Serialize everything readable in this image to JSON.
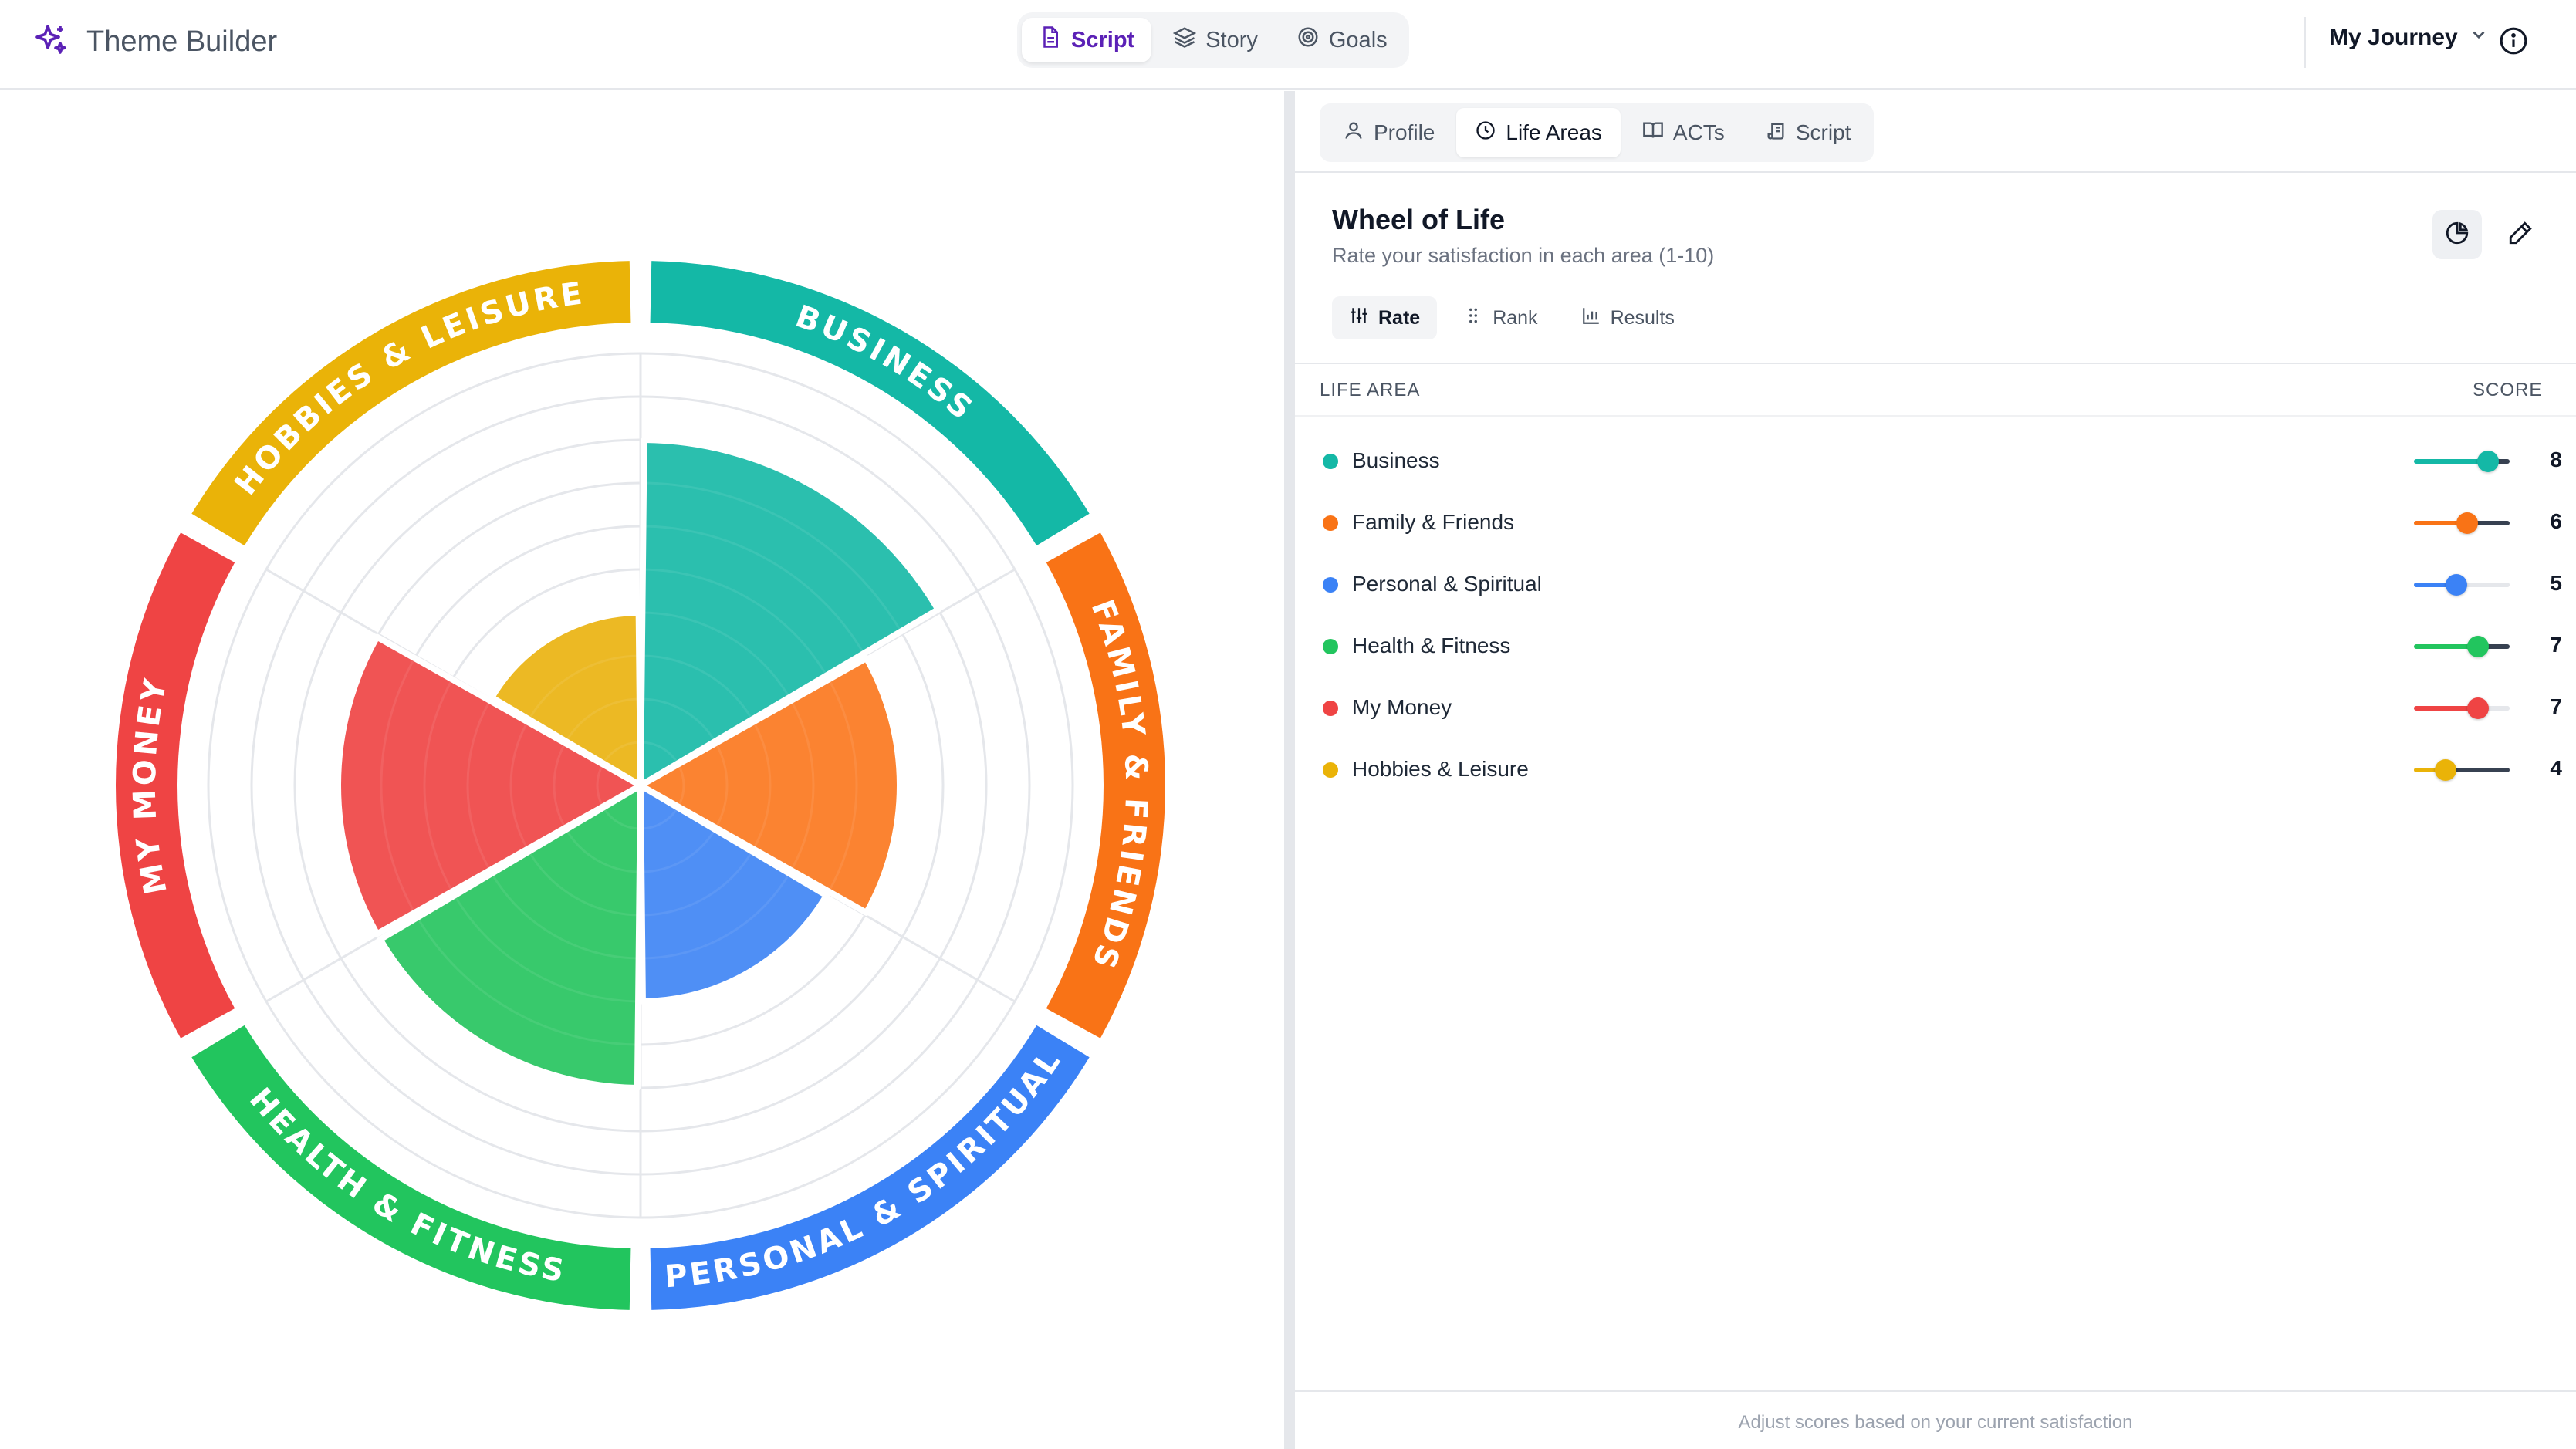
{
  "app": {
    "title": "Theme Builder"
  },
  "header": {
    "nav": [
      {
        "label": "Script",
        "icon": "document-icon",
        "active": true
      },
      {
        "label": "Story",
        "icon": "layers-icon",
        "active": false
      },
      {
        "label": "Goals",
        "icon": "target-icon",
        "active": false
      }
    ],
    "journey_label": "My Journey"
  },
  "panel": {
    "tabs": [
      {
        "label": "Profile",
        "icon": "user-icon"
      },
      {
        "label": "Life Areas",
        "icon": "circle-icon",
        "active": true
      },
      {
        "label": "ACTs",
        "icon": "book-icon"
      },
      {
        "label": "Script",
        "icon": "scroll-icon"
      }
    ],
    "title": "Wheel of Life",
    "subtitle": "Rate your satisfaction in each area (1-10)",
    "modes": [
      {
        "label": "Rate",
        "icon": "sliders-icon",
        "active": true
      },
      {
        "label": "Rank",
        "icon": "grip-icon"
      },
      {
        "label": "Results",
        "icon": "bar-chart-icon"
      }
    ],
    "col_area": "LIFE AREA",
    "col_score": "SCORE",
    "footer": "Adjust scores based on your current satisfaction"
  },
  "areas": [
    {
      "name": "Business",
      "score": 8,
      "color": "#14b8a6",
      "fill": "#2bbfae",
      "ring_label": "BUSINESS"
    },
    {
      "name": "Family & Friends",
      "score": 6,
      "color": "#f97316",
      "fill": "#fb8331",
      "ring_label": "FAMILY & FRIENDS"
    },
    {
      "name": "Personal & Spiritual",
      "score": 5,
      "color": "#3b82f6",
      "fill": "#4f8ff5",
      "ring_label": "PERSONAL & SPIRITUAL"
    },
    {
      "name": "Health & Fitness",
      "score": 7,
      "color": "#22c55e",
      "fill": "#38c96c",
      "ring_label": "HEALTH & FITNESS"
    },
    {
      "name": "My Money",
      "score": 7,
      "color": "#ef4444",
      "fill": "#f05454",
      "ring_label": "MY MONEY"
    },
    {
      "name": "Hobbies & Leisure",
      "score": 4,
      "color": "#eab308",
      "fill": "#ecb924",
      "ring_label": "HOBBIES & LEISURE"
    }
  ],
  "scale_max": 10
}
